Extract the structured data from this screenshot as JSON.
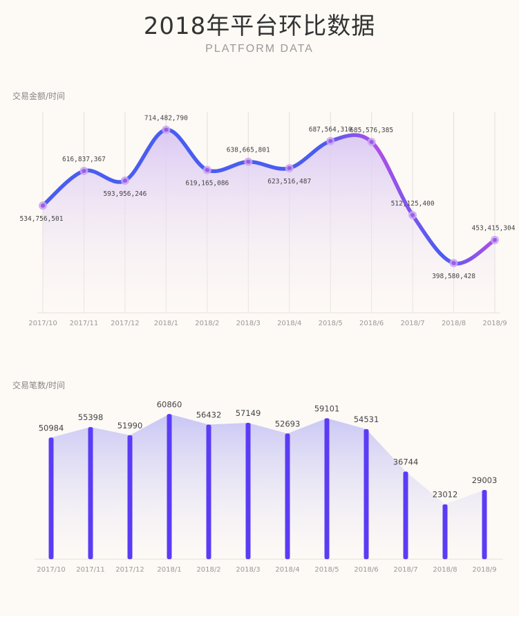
{
  "header": {
    "title": "2018年平台环比数据",
    "subtitle": "PLATFORM DATA"
  },
  "colors": {
    "background": "#fdf9f5",
    "line_blue": "#4a5df0",
    "line_purple": "#b04ee8",
    "bar": "#5b3cf5",
    "area1": "#d9c6f3",
    "area2": "#c5c3f5",
    "grid": "#e2dedb",
    "axis_text": "#999999",
    "label_text": "#444444"
  },
  "chart_data": [
    {
      "type": "line",
      "title": "交易金额/时间",
      "categories": [
        "2017/10",
        "2017/11",
        "2017/12",
        "2018/1",
        "2018/2",
        "2018/3",
        "2018/4",
        "2018/5",
        "2018/6",
        "2018/7",
        "2018/8",
        "2018/9"
      ],
      "values": [
        534756501,
        616837367,
        593956246,
        714482790,
        619165086,
        638665801,
        623516487,
        687564310,
        685576385,
        512125400,
        398580428,
        453415304
      ],
      "labels": [
        "534,756,501",
        "616,837,367",
        "593,956,246",
        "714,482,790",
        "619,165,086",
        "638,665,801",
        "623,516,487",
        "687,564,310",
        "685,576,385",
        "512,125,400",
        "398,580,428",
        "453,415,304"
      ],
      "label_positions": [
        "below",
        "above",
        "below",
        "above",
        "below",
        "above",
        "below",
        "above",
        "above",
        "above",
        "below",
        "above"
      ],
      "ylim": [
        330000000,
        730000000
      ],
      "grid": "vertical",
      "legend": "none"
    },
    {
      "type": "bar",
      "title": "交易笔数/时间",
      "categories": [
        "2017/10",
        "2017/11",
        "2017/12",
        "2018/1",
        "2018/2",
        "2018/3",
        "2018/4",
        "2018/5",
        "2018/6",
        "2018/7",
        "2018/8",
        "2018/9"
      ],
      "values": [
        50984,
        55398,
        51990,
        60860,
        56432,
        57149,
        52693,
        59101,
        54531,
        36744,
        23012,
        29003
      ],
      "ylim": [
        0,
        65000
      ],
      "grid": "none",
      "legend": "none"
    }
  ]
}
